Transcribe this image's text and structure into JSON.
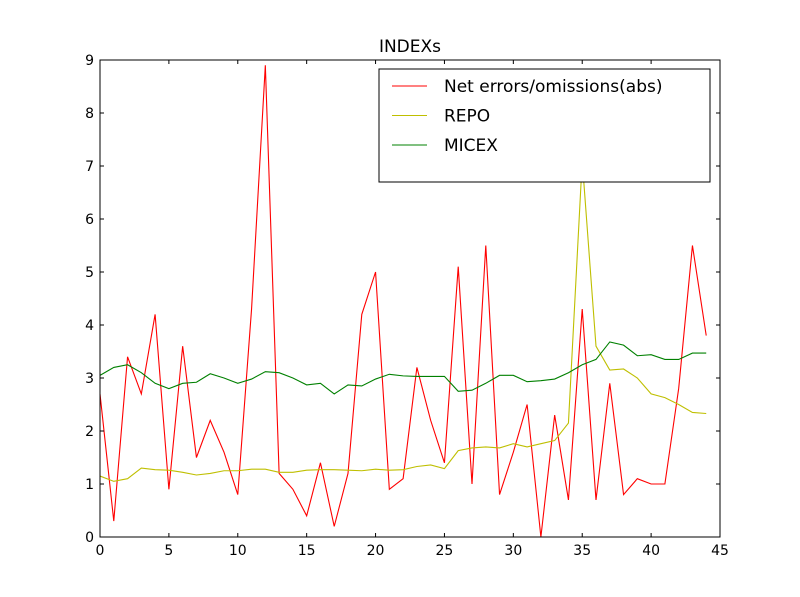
{
  "chart_data": {
    "type": "line",
    "title": "INDEXs",
    "xlabel": "",
    "ylabel": "",
    "xlim": [
      0,
      45
    ],
    "ylim": [
      0,
      9
    ],
    "xticks": [
      "0",
      "5",
      "10",
      "15",
      "20",
      "25",
      "30",
      "35",
      "40",
      "45"
    ],
    "yticks": [
      "0",
      "1",
      "2",
      "3",
      "4",
      "5",
      "6",
      "7",
      "8",
      "9"
    ],
    "grid": false,
    "legend_position": "top-right",
    "x": [
      0,
      1,
      2,
      3,
      4,
      5,
      6,
      7,
      8,
      9,
      10,
      11,
      12,
      13,
      14,
      15,
      16,
      17,
      18,
      19,
      20,
      21,
      22,
      23,
      24,
      25,
      26,
      27,
      28,
      29,
      30,
      31,
      32,
      33,
      34,
      35,
      36,
      37,
      38,
      39,
      40,
      41,
      42,
      43,
      44
    ],
    "series": [
      {
        "name": "Net errors/omissions(abs)",
        "color": "#ff0000",
        "values": [
          2.7,
          0.3,
          3.4,
          2.7,
          4.2,
          0.9,
          3.6,
          1.5,
          2.2,
          1.6,
          0.8,
          4.3,
          8.9,
          1.2,
          0.9,
          0.4,
          1.4,
          0.2,
          1.2,
          4.2,
          5.0,
          0.9,
          1.1,
          3.2,
          2.2,
          1.4,
          5.1,
          1.0,
          5.5,
          0.8,
          1.6,
          2.5,
          0.0,
          2.3,
          0.7,
          4.3,
          0.7,
          2.9,
          0.8,
          1.1,
          1.0,
          1.0,
          2.8,
          5.5,
          3.8
        ]
      },
      {
        "name": "REPO",
        "color": "#bfbf00",
        "values": [
          1.15,
          1.05,
          1.1,
          1.3,
          1.27,
          1.26,
          1.22,
          1.17,
          1.2,
          1.25,
          1.25,
          1.28,
          1.28,
          1.22,
          1.22,
          1.26,
          1.27,
          1.27,
          1.26,
          1.25,
          1.28,
          1.26,
          1.27,
          1.33,
          1.36,
          1.29,
          1.63,
          1.68,
          1.7,
          1.68,
          1.76,
          1.7,
          1.76,
          1.82,
          2.15,
          7.1,
          3.6,
          3.15,
          3.17,
          3.0,
          2.7,
          2.63,
          2.5,
          2.35,
          2.33
        ]
      },
      {
        "name": "MICEX",
        "color": "#008000",
        "values": [
          3.05,
          3.2,
          3.25,
          3.1,
          2.9,
          2.8,
          2.9,
          2.92,
          3.08,
          3.0,
          2.9,
          2.98,
          3.12,
          3.1,
          3.0,
          2.87,
          2.9,
          2.7,
          2.87,
          2.85,
          2.98,
          3.07,
          3.04,
          3.03,
          3.03,
          3.03,
          2.75,
          2.77,
          2.9,
          3.05,
          3.05,
          2.93,
          2.95,
          2.98,
          3.1,
          3.25,
          3.35,
          3.68,
          3.62,
          3.42,
          3.44,
          3.35,
          3.35,
          3.47,
          3.47
        ]
      }
    ]
  }
}
